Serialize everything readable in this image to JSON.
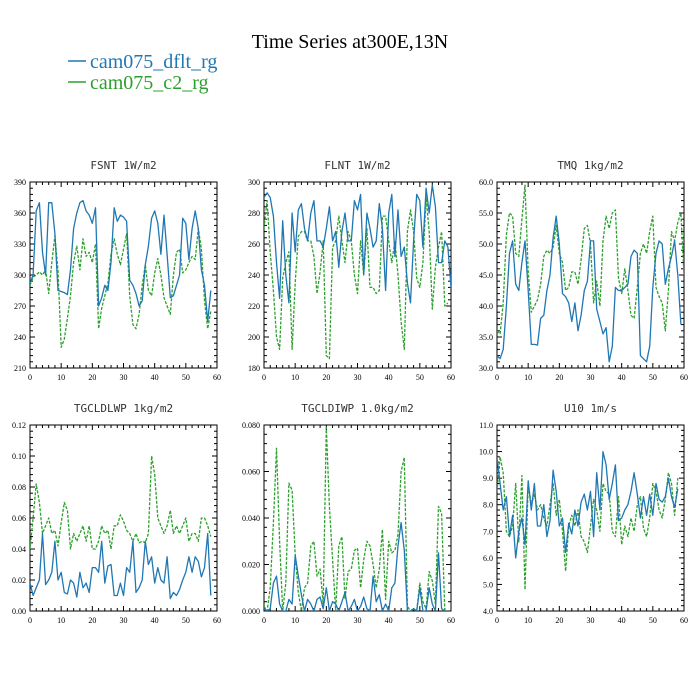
{
  "title": "Time Series at300E,13N",
  "legend": [
    {
      "name": "cam075_dflt_rg",
      "color": "#1f77b4",
      "dash": false
    },
    {
      "name": "cam075_c2_rg",
      "color": "#2ca02c",
      "dash": true
    }
  ],
  "chart_data": [
    {
      "type": "line",
      "title": "FSNT   1W/m2",
      "xlim": [
        0,
        60
      ],
      "xticks": [
        "0",
        "10",
        "20",
        "30",
        "40",
        "50",
        "60"
      ],
      "ylim": [
        210,
        390
      ],
      "yticks": [
        "210",
        "240",
        "270",
        "300",
        "330",
        "360",
        "390"
      ],
      "series": [
        {
          "name": "cam075_dflt_rg",
          "values": [
            292,
            300,
            362,
            370,
            322,
            300,
            370,
            370,
            340,
            285,
            284,
            283,
            281,
            305,
            345,
            360,
            370,
            372,
            362,
            358,
            350,
            365,
            270,
            278,
            290,
            285,
            312,
            365,
            352,
            358,
            356,
            352,
            295,
            290,
            282,
            270,
            275,
            310,
            328,
            355,
            362,
            350,
            320,
            358,
            320,
            278,
            280,
            290,
            300,
            355,
            350,
            315,
            345,
            362,
            345,
            305,
            290,
            255,
            285
          ]
        },
        {
          "name": "cam075_c2_rg",
          "values": [
            290,
            298,
            300,
            303,
            300,
            305,
            282,
            312,
            338,
            304,
            230,
            238,
            258,
            280,
            312,
            328,
            305,
            335,
            318,
            322,
            312,
            330,
            248,
            268,
            280,
            292,
            320,
            335,
            320,
            310,
            325,
            340,
            280,
            252,
            248,
            262,
            290,
            310,
            285,
            280,
            302,
            316,
            300,
            278,
            270,
            262,
            300,
            322,
            325,
            302,
            305,
            312,
            318,
            315,
            345,
            325,
            275,
            248,
            265
          ]
        }
      ]
    },
    {
      "type": "line",
      "title": "FLNT   1W/m2",
      "xlim": [
        0,
        60
      ],
      "xticks": [
        "0",
        "10",
        "20",
        "30",
        "40",
        "50",
        "60"
      ],
      "ylim": [
        180,
        300
      ],
      "yticks": [
        "180",
        "200",
        "220",
        "240",
        "260",
        "280",
        "300"
      ],
      "series": [
        {
          "name": "cam075_dflt_rg",
          "values": [
            290,
            293,
            290,
            278,
            248,
            225,
            275,
            240,
            222,
            280,
            255,
            282,
            286,
            270,
            262,
            280,
            288,
            262,
            262,
            258,
            270,
            284,
            262,
            268,
            245,
            268,
            280,
            262,
            262,
            288,
            282,
            292,
            240,
            280,
            270,
            258,
            262,
            286,
            270,
            230,
            280,
            292,
            252,
            282,
            252,
            258,
            235,
            222,
            262,
            292,
            288,
            258,
            296,
            280,
            298,
            284,
            248,
            248,
            262,
            258,
            232,
            285
          ]
        },
        {
          "name": "cam075_c2_rg",
          "values": [
            270,
            288,
            255,
            230,
            200,
            192,
            238,
            248,
            255,
            192,
            235,
            265,
            268,
            268,
            262,
            262,
            252,
            228,
            242,
            262,
            188,
            186,
            258,
            262,
            278,
            262,
            248,
            268,
            262,
            240,
            228,
            262,
            240,
            270,
            232,
            232,
            228,
            230,
            278,
            278,
            262,
            248,
            262,
            240,
            210,
            192,
            268,
            282,
            268,
            238,
            232,
            248,
            290,
            268,
            218,
            245,
            258,
            268,
            220,
            222
          ]
        }
      ]
    },
    {
      "type": "line",
      "title": "TMQ   1kg/m2",
      "xlim": [
        0,
        60
      ],
      "xticks": [
        "0",
        "10",
        "20",
        "30",
        "40",
        "50",
        "60"
      ],
      "ylim": [
        30.0,
        60.0
      ],
      "yticks": [
        "30.0",
        "35.0",
        "40.0",
        "45.0",
        "50.0",
        "55.0",
        "60.0"
      ],
      "series": [
        {
          "name": "cam075_dflt_rg",
          "values": [
            32.0,
            31.5,
            33.0,
            40.0,
            48.5,
            50.5,
            43.5,
            42.5,
            47.0,
            50.5,
            42.5,
            33.8,
            33.8,
            33.7,
            38.0,
            38.5,
            42.5,
            45.0,
            51.0,
            54.5,
            50.0,
            42.0,
            41.5,
            40.5,
            37.5,
            40.5,
            36.0,
            38.5,
            42.5,
            44.0,
            50.5,
            50.5,
            39.5,
            37.5,
            35.5,
            36.5,
            31.0,
            33.5,
            43.0,
            42.5,
            42.5,
            43.0,
            43.5,
            48.0,
            49.0,
            48.5,
            32.0,
            31.5,
            31.0,
            33.5,
            43.0,
            48.5,
            50.5,
            50.0,
            43.5,
            46.0,
            48.0,
            50.5,
            45.0,
            37.0
          ]
        },
        {
          "name": "cam075_c2_rg",
          "values": [
            36.0,
            35.5,
            40.5,
            51.5,
            55.0,
            54.5,
            48.5,
            48.0,
            54.0,
            59.5,
            45.5,
            39.0,
            40.0,
            41.0,
            43.5,
            48.0,
            49.0,
            48.5,
            49.5,
            53.0,
            48.5,
            47.0,
            42.5,
            43.0,
            45.5,
            45.5,
            43.5,
            47.5,
            52.5,
            53.0,
            50.0,
            40.5,
            44.0,
            40.0,
            50.5,
            54.5,
            52.5,
            55.0,
            55.5,
            44.5,
            42.0,
            46.0,
            42.5,
            38.5,
            38.0,
            43.0,
            48.5,
            50.0,
            48.5,
            52.0,
            54.5,
            43.0,
            41.5,
            40.5,
            36.0,
            42.5,
            52.0,
            50.5,
            53.5,
            55.0,
            45.0
          ]
        }
      ]
    },
    {
      "type": "line",
      "title": "TGCLDLWP   1kg/m2",
      "xlim": [
        0,
        60
      ],
      "xticks": [
        "0",
        "10",
        "20",
        "30",
        "40",
        "50",
        "60"
      ],
      "ylim": [
        0.0,
        0.12
      ],
      "yticks": [
        "0.00",
        "0.02",
        "0.04",
        "0.06",
        "0.08",
        "0.10",
        "0.12"
      ],
      "series": [
        {
          "name": "cam075_dflt_rg",
          "values": [
            0.018,
            0.01,
            0.015,
            0.02,
            0.05,
            0.017,
            0.02,
            0.025,
            0.045,
            0.02,
            0.025,
            0.012,
            0.011,
            0.02,
            0.018,
            0.009,
            0.025,
            0.015,
            0.018,
            0.012,
            0.028,
            0.028,
            0.025,
            0.045,
            0.018,
            0.029,
            0.03,
            0.01,
            0.01,
            0.018,
            0.01,
            0.028,
            0.025,
            0.045,
            0.012,
            0.015,
            0.02,
            0.045,
            0.03,
            0.035,
            0.018,
            0.028,
            0.02,
            0.018,
            0.035,
            0.008,
            0.012,
            0.01,
            0.014,
            0.02,
            0.025,
            0.035,
            0.025,
            0.035,
            0.032,
            0.022,
            0.028,
            0.05,
            0.01
          ]
        },
        {
          "name": "cam075_c2_rg",
          "values": [
            0.04,
            0.06,
            0.082,
            0.07,
            0.05,
            0.055,
            0.06,
            0.05,
            0.052,
            0.042,
            0.057,
            0.07,
            0.065,
            0.04,
            0.05,
            0.045,
            0.05,
            0.055,
            0.045,
            0.055,
            0.04,
            0.04,
            0.045,
            0.055,
            0.05,
            0.052,
            0.04,
            0.055,
            0.055,
            0.062,
            0.058,
            0.052,
            0.05,
            0.045,
            0.05,
            0.044,
            0.045,
            0.044,
            0.05,
            0.1,
            0.088,
            0.06,
            0.055,
            0.05,
            0.055,
            0.065,
            0.05,
            0.055,
            0.05,
            0.055,
            0.06,
            0.045,
            0.05,
            0.05,
            0.045,
            0.06,
            0.06,
            0.055,
            0.048
          ]
        }
      ]
    },
    {
      "type": "line",
      "title": "TGCLDIWP   1.0kg/m2",
      "xlim": [
        0,
        60
      ],
      "xticks": [
        "0",
        "10",
        "20",
        "30",
        "40",
        "50",
        "60"
      ],
      "ylim": [
        0.0,
        0.08
      ],
      "yticks": [
        "0.000",
        "0.020",
        "0.040",
        "0.060",
        "0.080"
      ],
      "series": [
        {
          "name": "cam075_dflt_rg",
          "values": [
            0.001,
            0.0,
            0.001,
            0.012,
            0.015,
            0.003,
            0.0,
            0.0,
            0.005,
            0.003,
            0.024,
            0.015,
            0.007,
            0.0,
            0.005,
            0.003,
            0.0,
            0.005,
            0.006,
            0.001,
            0.01,
            0.0,
            0.004,
            0.003,
            0.0,
            0.004,
            0.008,
            0.0,
            0.002,
            0.005,
            0.0,
            0.002,
            0.006,
            0.001,
            0.0,
            0.015,
            0.004,
            0.007,
            0.0,
            0.003,
            0.0,
            0.01,
            0.012,
            0.028,
            0.038,
            0.026,
            0.0,
            0.0,
            0.001,
            0.0,
            0.01,
            0.0,
            0.0,
            0.01,
            0.003,
            0.0,
            0.025,
            0.001,
            0.0
          ]
        },
        {
          "name": "cam075_c2_rg",
          "values": [
            0.002,
            0.0,
            0.01,
            0.038,
            0.07,
            0.03,
            0.0,
            0.012,
            0.055,
            0.052,
            0.024,
            0.008,
            0.0,
            0.01,
            0.012,
            0.028,
            0.03,
            0.015,
            0.018,
            0.003,
            0.079,
            0.045,
            0.022,
            0.0,
            0.028,
            0.032,
            0.005,
            0.017,
            0.018,
            0.026,
            0.027,
            0.01,
            0.022,
            0.03,
            0.028,
            0.02,
            0.01,
            0.018,
            0.035,
            0.005,
            0.03,
            0.025,
            0.026,
            0.033,
            0.06,
            0.066,
            0.002,
            0.0,
            0.001,
            0.0,
            0.012,
            0.004,
            0.001,
            0.017,
            0.013,
            0.003,
            0.045,
            0.042,
            0.0
          ]
        }
      ]
    },
    {
      "type": "line",
      "title": "U10   1m/s",
      "xlim": [
        0,
        60
      ],
      "xticks": [
        "0",
        "10",
        "20",
        "30",
        "40",
        "50",
        "60"
      ],
      "ylim": [
        4.0,
        11.0
      ],
      "yticks": [
        "4.0",
        "5.0",
        "6.0",
        "7.0",
        "8.0",
        "9.0",
        "10.0",
        "11.0"
      ],
      "series": [
        {
          "name": "cam075_dflt_rg",
          "values": [
            9.8,
            8.8,
            7.8,
            8.3,
            6.8,
            7.6,
            6.0,
            7.0,
            7.5,
            6.5,
            8.9,
            7.8,
            8.8,
            7.2,
            7.2,
            8.0,
            6.8,
            7.4,
            9.3,
            8.5,
            7.2,
            7.5,
            6.2,
            7.3,
            6.9,
            7.8,
            7.2,
            8.1,
            8.4,
            7.8,
            8.5,
            6.8,
            9.2,
            7.8,
            10.0,
            9.5,
            8.2,
            8.8,
            9.5,
            7.4,
            7.5,
            7.8,
            8.0,
            8.5,
            9.2,
            8.4,
            7.5,
            8.3,
            7.6,
            8.4,
            7.6,
            8.8,
            8.2,
            8.1,
            8.3,
            9.0,
            8.3,
            7.9,
            8.6
          ]
        },
        {
          "name": "cam075_c2_rg",
          "values": [
            8.5,
            9.8,
            9.2,
            7.0,
            6.8,
            7.2,
            8.8,
            6.6,
            9.1,
            4.8,
            8.8,
            8.0,
            8.4,
            7.8,
            8.0,
            7.5,
            7.2,
            8.0,
            8.8,
            7.6,
            8.2,
            7.0,
            5.5,
            7.2,
            7.6,
            7.2,
            7.8,
            6.8,
            6.6,
            6.2,
            7.2,
            8.2,
            7.8,
            7.0,
            8.8,
            8.5,
            8.4,
            7.0,
            6.8,
            8.3,
            6.5,
            7.2,
            6.8,
            7.5,
            7.0,
            8.0,
            8.3,
            7.1,
            6.8,
            7.5,
            8.8,
            8.5,
            7.8,
            7.5,
            8.2,
            9.2,
            8.8,
            7.6,
            9.0
          ]
        }
      ]
    }
  ]
}
